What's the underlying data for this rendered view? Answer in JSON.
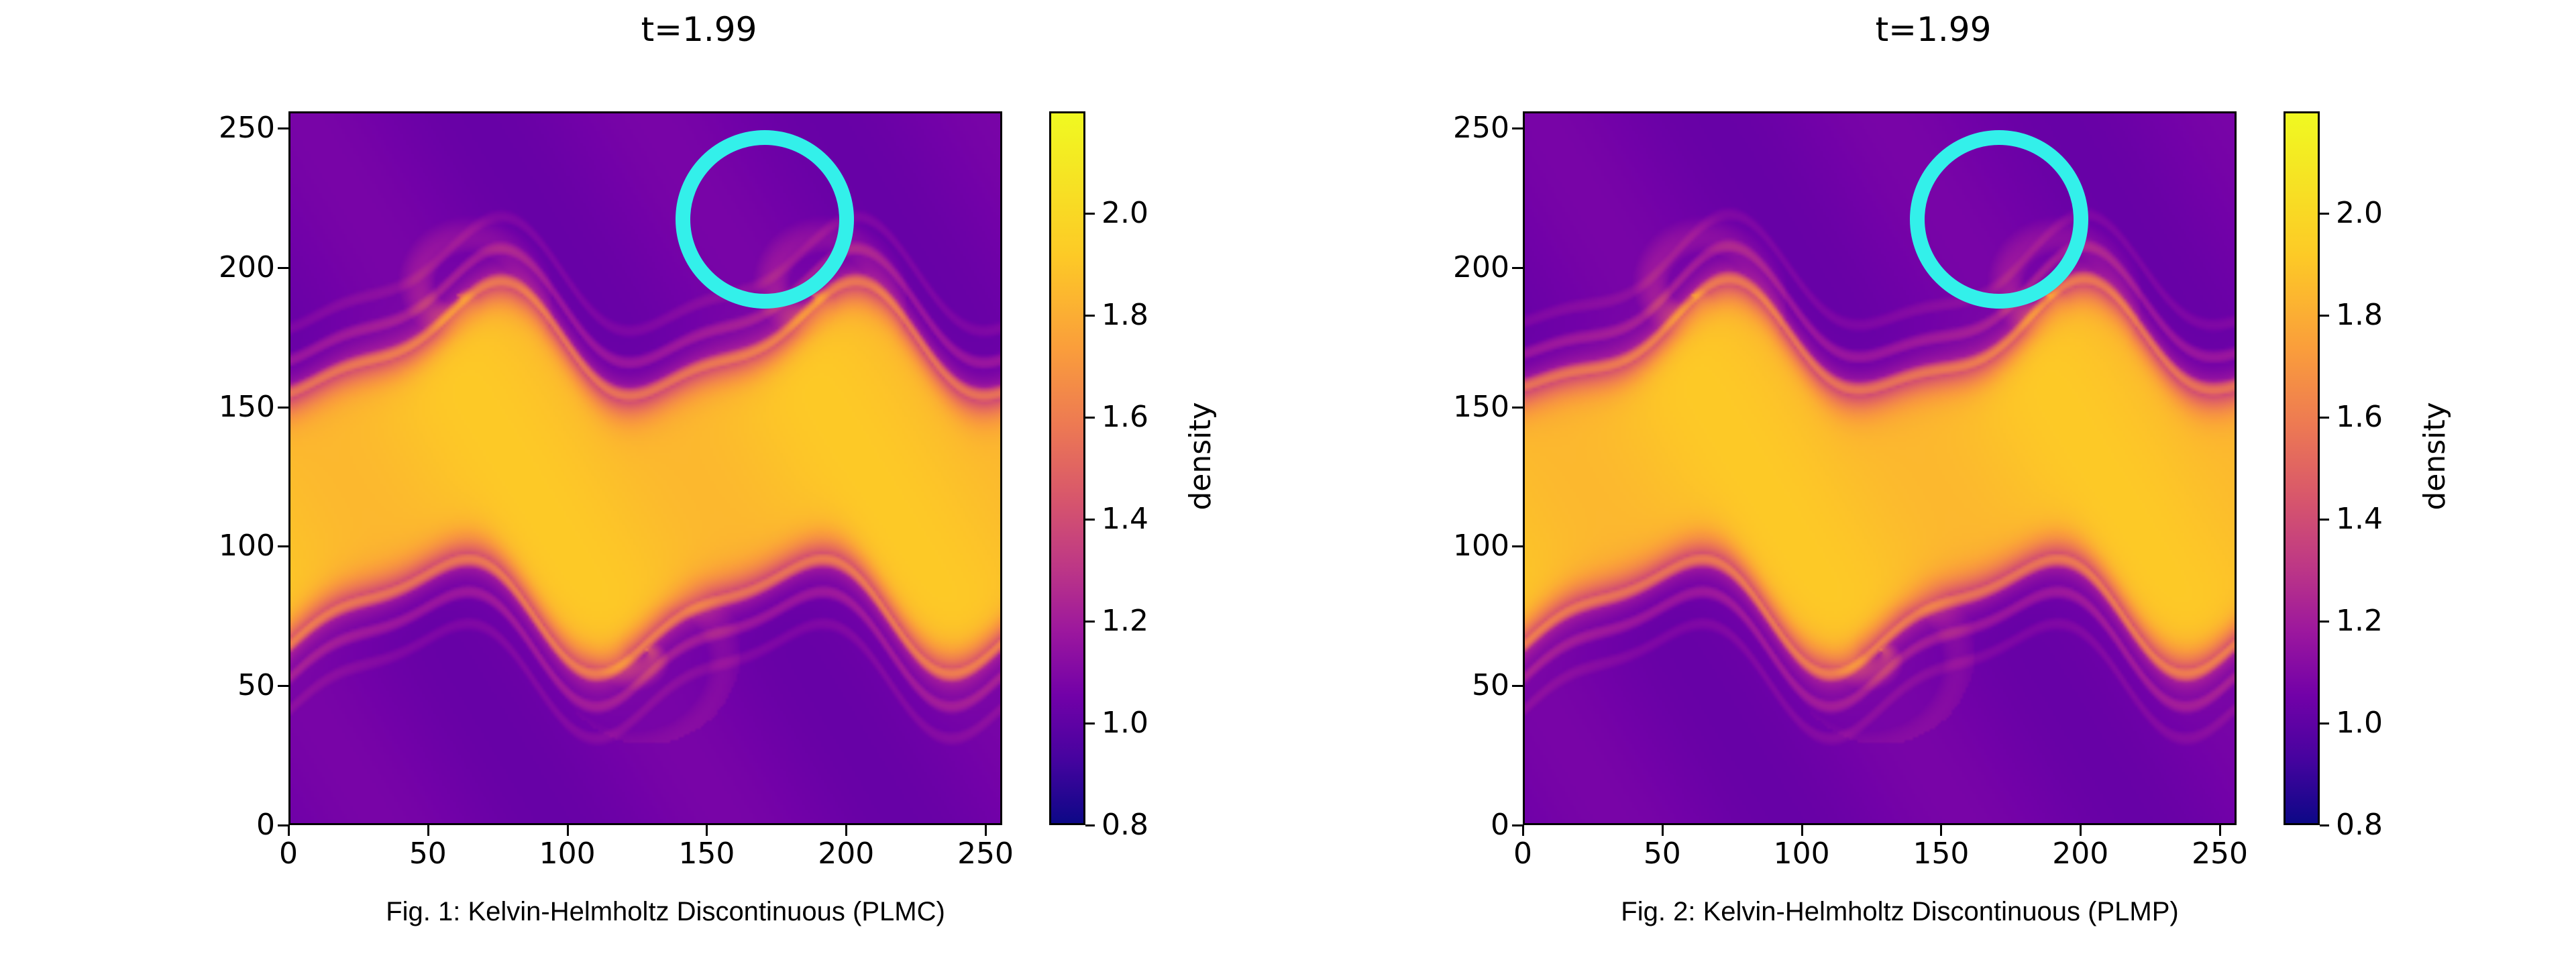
{
  "chart_data": [
    {
      "type": "heatmap",
      "title": "t=1.99",
      "xlabel": "",
      "ylabel": "",
      "xlim": [
        0,
        256
      ],
      "ylim": [
        0,
        256
      ],
      "xticks": [
        "0",
        "50",
        "100",
        "150",
        "200",
        "250"
      ],
      "yticks": [
        "0",
        "50",
        "100",
        "150",
        "200",
        "250"
      ],
      "colormap": "plasma",
      "colorbar": {
        "label": "density",
        "range": [
          0.8,
          2.2
        ],
        "ticks": [
          "0.8",
          "1.0",
          "1.2",
          "1.4",
          "1.6",
          "1.8",
          "2.0"
        ]
      },
      "field": {
        "upper_layer_y": [
          140,
          256
        ],
        "lower_layer_y": [
          0,
          70
        ],
        "layer_density": 1.1,
        "band_density": 2.0,
        "interface_y": [
          75,
          185
        ],
        "vortex_wavelength": 128,
        "vortex_centers_x": [
          60,
          128,
          188
        ]
      },
      "annotation": {
        "shape": "circle",
        "center": [
          170,
          218
        ],
        "radius": 32,
        "color": "#33f0ea"
      },
      "caption": "Fig. 1: Kelvin-Helmholtz Discontinuous (PLMC)"
    },
    {
      "type": "heatmap",
      "title": "t=1.99",
      "xlabel": "",
      "ylabel": "",
      "xlim": [
        0,
        256
      ],
      "ylim": [
        0,
        256
      ],
      "xticks": [
        "0",
        "50",
        "100",
        "150",
        "200",
        "250"
      ],
      "yticks": [
        "0",
        "50",
        "100",
        "150",
        "200",
        "250"
      ],
      "colormap": "plasma",
      "colorbar": {
        "label": "density",
        "range": [
          0.8,
          2.2
        ],
        "ticks": [
          "0.8",
          "1.0",
          "1.2",
          "1.4",
          "1.6",
          "1.8",
          "2.0"
        ]
      },
      "field": {
        "upper_layer_y": [
          140,
          256
        ],
        "lower_layer_y": [
          0,
          70
        ],
        "layer_density": 1.1,
        "band_density": 2.0,
        "interface_y": [
          75,
          185
        ],
        "vortex_wavelength": 128,
        "vortex_centers_x": [
          60,
          128,
          188
        ]
      },
      "annotation": {
        "shape": "circle",
        "center": [
          170,
          218
        ],
        "radius": 32,
        "color": "#33f0ea"
      },
      "caption": "Fig. 2: Kelvin-Helmholtz Discontinuous (PLMP)"
    }
  ]
}
